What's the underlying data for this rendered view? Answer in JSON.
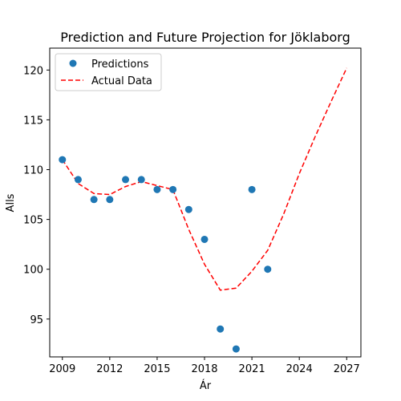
{
  "chart_data": {
    "type": "scatter",
    "title": "Prediction and Future Projection for Jöklaborg",
    "xlabel": "Ár",
    "ylabel": "Alls",
    "xlim": [
      2008.2,
      2027.9
    ],
    "ylim": [
      91.2,
      122.2
    ],
    "xticks": [
      2009,
      2012,
      2015,
      2018,
      2021,
      2024,
      2027
    ],
    "yticks": [
      95,
      100,
      105,
      110,
      115,
      120
    ],
    "grid": false,
    "legend": "top-left",
    "series": [
      {
        "name": "Predictions",
        "kind": "scatter",
        "color": "#1f77b4",
        "x": [
          2009,
          2010,
          2011,
          2012,
          2013,
          2014,
          2015,
          2016,
          2017,
          2018,
          2019,
          2020,
          2021,
          2022
        ],
        "y": [
          111,
          109,
          107,
          107,
          109,
          109,
          108,
          108,
          106,
          103,
          94,
          92,
          108,
          100
        ]
      },
      {
        "name": "Actual Data",
        "kind": "line",
        "style": "dashed",
        "color": "#ff0000",
        "x": [
          2009,
          2010,
          2011,
          2012,
          2013,
          2014,
          2015,
          2016,
          2017,
          2018,
          2019,
          2020,
          2021,
          2022,
          2023,
          2024,
          2025,
          2026,
          2027
        ],
        "y": [
          111.0,
          108.6,
          107.6,
          107.5,
          108.3,
          108.8,
          108.4,
          108.0,
          104.0,
          100.5,
          97.9,
          98.1,
          99.8,
          101.9,
          105.5,
          109.6,
          113.3,
          116.8,
          120.2
        ]
      }
    ]
  }
}
